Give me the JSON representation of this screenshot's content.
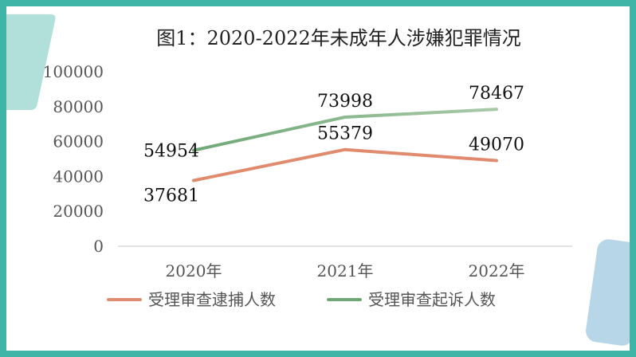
{
  "chart_data": {
    "type": "line",
    "title": "图1：2020-2022年未成年人涉嫌犯罪情况",
    "categories": [
      "2020年",
      "2021年",
      "2022年"
    ],
    "ylim": [
      0,
      100000
    ],
    "yticks": [
      "0",
      "20000",
      "40000",
      "60000",
      "80000",
      "100000"
    ],
    "grid": false,
    "legend_position": "bottom",
    "series": [
      {
        "name": "受理审查逮捕人数",
        "values": [
          37681,
          55379,
          49070
        ],
        "labels": [
          "37681",
          "55379",
          "49070"
        ],
        "color": "#e08a6e"
      },
      {
        "name": "受理审查起诉人数",
        "values": [
          54954,
          73998,
          78467
        ],
        "labels": [
          "54954",
          "73998",
          "78467"
        ],
        "color": "#6fa876",
        "color_end": "#a8c9a8"
      }
    ]
  }
}
